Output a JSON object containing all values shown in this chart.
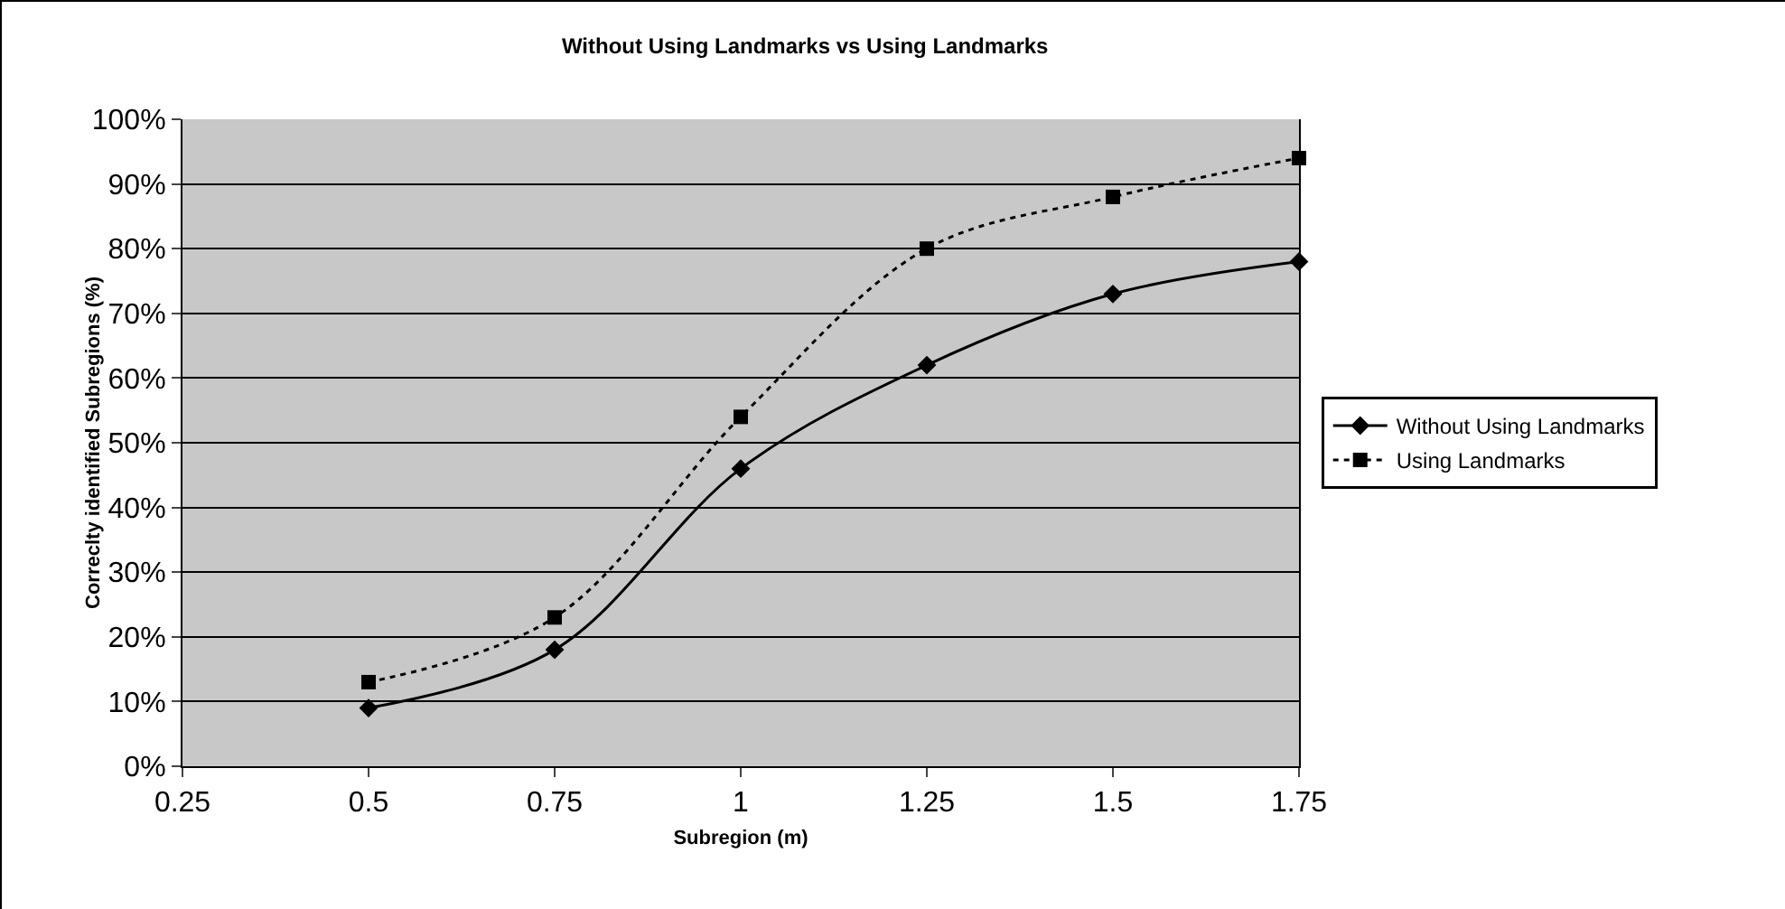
{
  "chart_data": {
    "type": "line",
    "title": "Without Using Landmarks vs Using Landmarks",
    "xlabel": "Subregion (m)",
    "ylabel": "Correclty identified Subregions (%)",
    "x": [
      0.5,
      0.75,
      1,
      1.25,
      1.5,
      1.75
    ],
    "series": [
      {
        "name": "Without Using Landmarks",
        "color": "#000000",
        "marker": "diamond",
        "line_style": "solid",
        "values": [
          9,
          18,
          46,
          62,
          73,
          78
        ]
      },
      {
        "name": "Using Landmarks",
        "color": "#000000",
        "marker": "square",
        "line_style": "dotted",
        "values": [
          13,
          23,
          54,
          80,
          88,
          94
        ]
      }
    ],
    "xlim": [
      0.25,
      1.75
    ],
    "xticks": [
      0.25,
      0.5,
      0.75,
      1,
      1.25,
      1.5,
      1.75
    ],
    "ylim": [
      0,
      100
    ],
    "yticks": [
      {
        "value": 0,
        "label": "0%"
      },
      {
        "value": 10,
        "label": "10%"
      },
      {
        "value": 20,
        "label": "20%"
      },
      {
        "value": 30,
        "label": "30%"
      },
      {
        "value": 40,
        "label": "40%"
      },
      {
        "value": 50,
        "label": "50%"
      },
      {
        "value": 60,
        "label": "60%"
      },
      {
        "value": 70,
        "label": "70%"
      },
      {
        "value": 80,
        "label": "80%"
      },
      {
        "value": 90,
        "label": "90%"
      },
      {
        "value": 100,
        "label": "100%"
      }
    ],
    "grid": "y",
    "legend": "right"
  }
}
